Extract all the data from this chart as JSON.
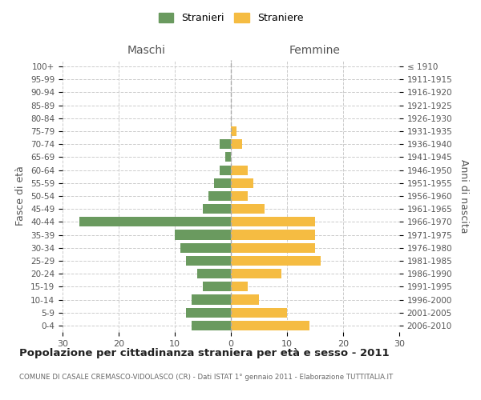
{
  "age_groups": [
    "0-4",
    "5-9",
    "10-14",
    "15-19",
    "20-24",
    "25-29",
    "30-34",
    "35-39",
    "40-44",
    "45-49",
    "50-54",
    "55-59",
    "60-64",
    "65-69",
    "70-74",
    "75-79",
    "80-84",
    "85-89",
    "90-94",
    "95-99",
    "100+"
  ],
  "birth_years": [
    "2006-2010",
    "2001-2005",
    "1996-2000",
    "1991-1995",
    "1986-1990",
    "1981-1985",
    "1976-1980",
    "1971-1975",
    "1966-1970",
    "1961-1965",
    "1956-1960",
    "1951-1955",
    "1946-1950",
    "1941-1945",
    "1936-1940",
    "1931-1935",
    "1926-1930",
    "1921-1925",
    "1916-1920",
    "1911-1915",
    "≤ 1910"
  ],
  "maschi": [
    7,
    8,
    7,
    5,
    6,
    8,
    9,
    10,
    27,
    5,
    4,
    3,
    2,
    1,
    2,
    0,
    0,
    0,
    0,
    0,
    0
  ],
  "femmine": [
    14,
    10,
    5,
    3,
    9,
    16,
    15,
    15,
    15,
    6,
    3,
    4,
    3,
    0,
    2,
    1,
    0,
    0,
    0,
    0,
    0
  ],
  "maschi_color": "#6a9a5f",
  "femmine_color": "#f5bc42",
  "background_color": "#ffffff",
  "grid_color": "#cccccc",
  "title": "Popolazione per cittadinanza straniera per età e sesso - 2011",
  "subtitle": "COMUNE DI CASALE CREMASCO-VIDOLASCO (CR) - Dati ISTAT 1° gennaio 2011 - Elaborazione TUTTITALIA.IT",
  "xlabel_left": "Maschi",
  "xlabel_right": "Femmine",
  "ylabel_left": "Fasce di età",
  "ylabel_right": "Anni di nascita",
  "legend_stranieri": "Stranieri",
  "legend_straniere": "Straniere",
  "xlim": 30
}
